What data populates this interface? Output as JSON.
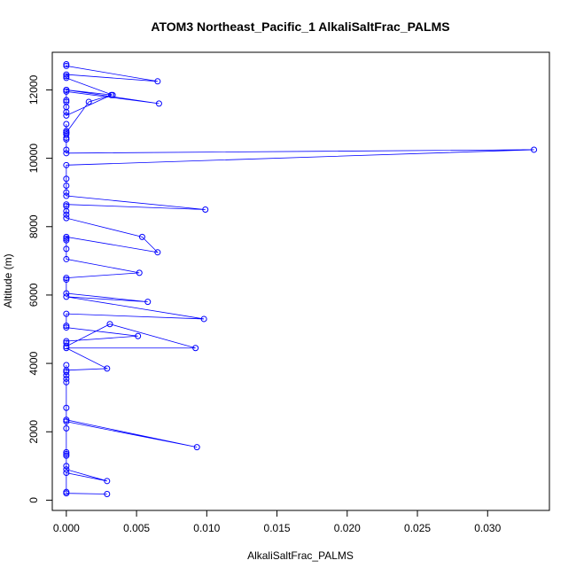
{
  "chart_data": {
    "type": "line",
    "title": "ATOM3 Northeast_Pacific_1 AlkaliSaltFrac_PALMS",
    "xlabel": "AlkaliSaltFrac_PALMS",
    "ylabel": "Altitude (m)",
    "xlim": [
      -0.001,
      0.0344
    ],
    "ylim": [
      -300,
      13100
    ],
    "x_ticks": [
      0.0,
      0.005,
      0.01,
      0.015,
      0.02,
      0.025,
      0.03
    ],
    "x_tick_labels": [
      "0.000",
      "0.005",
      "0.010",
      "0.015",
      "0.020",
      "0.025",
      "0.030"
    ],
    "y_ticks": [
      0,
      2000,
      4000,
      6000,
      8000,
      10000,
      12000
    ],
    "y_tick_labels": [
      "0",
      "2000",
      "4000",
      "6000",
      "8000",
      "10000",
      "12000"
    ],
    "grid": false,
    "marker": "open-circle",
    "color": "#0000ff",
    "series": [
      {
        "x": [
          0.0029,
          0.0,
          0.0,
          0.0,
          0.0029,
          0.0,
          0.0,
          0.0,
          0.0,
          0.0,
          0.0,
          0.0,
          0.0093,
          0.0,
          0.0,
          0.0,
          0.0,
          0.0,
          0.0,
          0.0,
          0.0,
          0.0029,
          0.0,
          0.0092,
          0.0031,
          0.0,
          0.0,
          0.0,
          0.0051,
          0.0,
          0.0,
          0.0,
          0.0098,
          0.0,
          0.0058,
          0.0,
          0.0,
          0.0,
          0.0052,
          0.0,
          0.0,
          0.0,
          0.0,
          0.0,
          0.0065,
          0.0054,
          0.0,
          0.0,
          0.0,
          0.0,
          0.0,
          0.0099,
          0.0,
          0.0,
          0.0,
          0.0,
          0.0,
          0.0333,
          0.0,
          0.0,
          0.0,
          0.0,
          0.0,
          0.0,
          0.0,
          0.0,
          0.0,
          0.0016,
          0.0032,
          0.0,
          0.0,
          0.0,
          0.0,
          0.0066,
          0.0,
          0.0,
          0.0,
          0.0,
          0.0033,
          0.0,
          0.0,
          0.0,
          0.0065,
          0.0,
          0.0
        ],
        "y": [
          180,
          200,
          240,
          800,
          560,
          900,
          1000,
          1300,
          1350,
          1400,
          2100,
          2300,
          1550,
          2350,
          2700,
          3450,
          3550,
          3650,
          3750,
          3950,
          3800,
          3850,
          4450,
          4450,
          5150,
          4500,
          4600,
          4650,
          4800,
          5050,
          5100,
          5450,
          5300,
          5950,
          5800,
          6050,
          6450,
          6500,
          6650,
          7050,
          7350,
          7600,
          7650,
          7700,
          7250,
          7700,
          8250,
          8350,
          8450,
          8600,
          8650,
          8500,
          8900,
          9000,
          9200,
          9400,
          9800,
          10250,
          10150,
          10250,
          10550,
          10600,
          10700,
          10750,
          10800,
          11000,
          10750,
          11650,
          11850,
          11250,
          11350,
          11650,
          11950,
          11600,
          12000,
          11700,
          11500,
          12000,
          11850,
          12350,
          12400,
          12450,
          12250,
          12700,
          12750
        ]
      }
    ]
  }
}
